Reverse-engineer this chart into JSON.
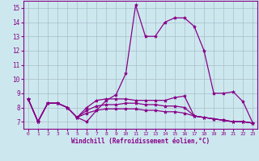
{
  "xlabel": "Windchill (Refroidissement éolien,°C)",
  "background_color": "#cce8ee",
  "grid_color": "#aabccc",
  "line_color": "#880088",
  "xlim": [
    -0.5,
    23.5
  ],
  "ylim": [
    6.5,
    15.5
  ],
  "yticks": [
    7,
    8,
    9,
    10,
    11,
    12,
    13,
    14,
    15
  ],
  "xticks": [
    0,
    1,
    2,
    3,
    4,
    5,
    6,
    7,
    8,
    9,
    10,
    11,
    12,
    13,
    14,
    15,
    16,
    17,
    18,
    19,
    20,
    21,
    22,
    23
  ],
  "lines": [
    [
      8.6,
      7.0,
      8.3,
      8.3,
      8.0,
      7.3,
      7.0,
      7.8,
      8.5,
      8.9,
      10.4,
      15.2,
      13.0,
      13.0,
      14.0,
      14.3,
      14.3,
      13.7,
      12.0,
      9.0,
      9.0,
      9.1,
      8.4,
      6.9
    ],
    [
      8.6,
      7.0,
      8.3,
      8.3,
      8.0,
      7.3,
      8.0,
      8.5,
      8.6,
      8.6,
      8.6,
      8.5,
      8.5,
      8.5,
      8.5,
      8.7,
      8.8,
      7.4,
      7.3,
      7.2,
      7.1,
      7.0,
      7.0,
      6.9
    ],
    [
      8.6,
      7.0,
      8.3,
      8.3,
      8.0,
      7.3,
      7.8,
      8.1,
      8.2,
      8.2,
      8.3,
      8.3,
      8.2,
      8.2,
      8.1,
      8.1,
      8.0,
      7.4,
      7.3,
      7.2,
      7.1,
      7.0,
      7.0,
      6.9
    ],
    [
      8.6,
      7.0,
      8.3,
      8.3,
      8.0,
      7.3,
      7.6,
      7.8,
      7.9,
      7.9,
      7.9,
      7.9,
      7.8,
      7.8,
      7.7,
      7.7,
      7.6,
      7.4,
      7.3,
      7.2,
      7.1,
      7.0,
      7.0,
      6.9
    ]
  ]
}
